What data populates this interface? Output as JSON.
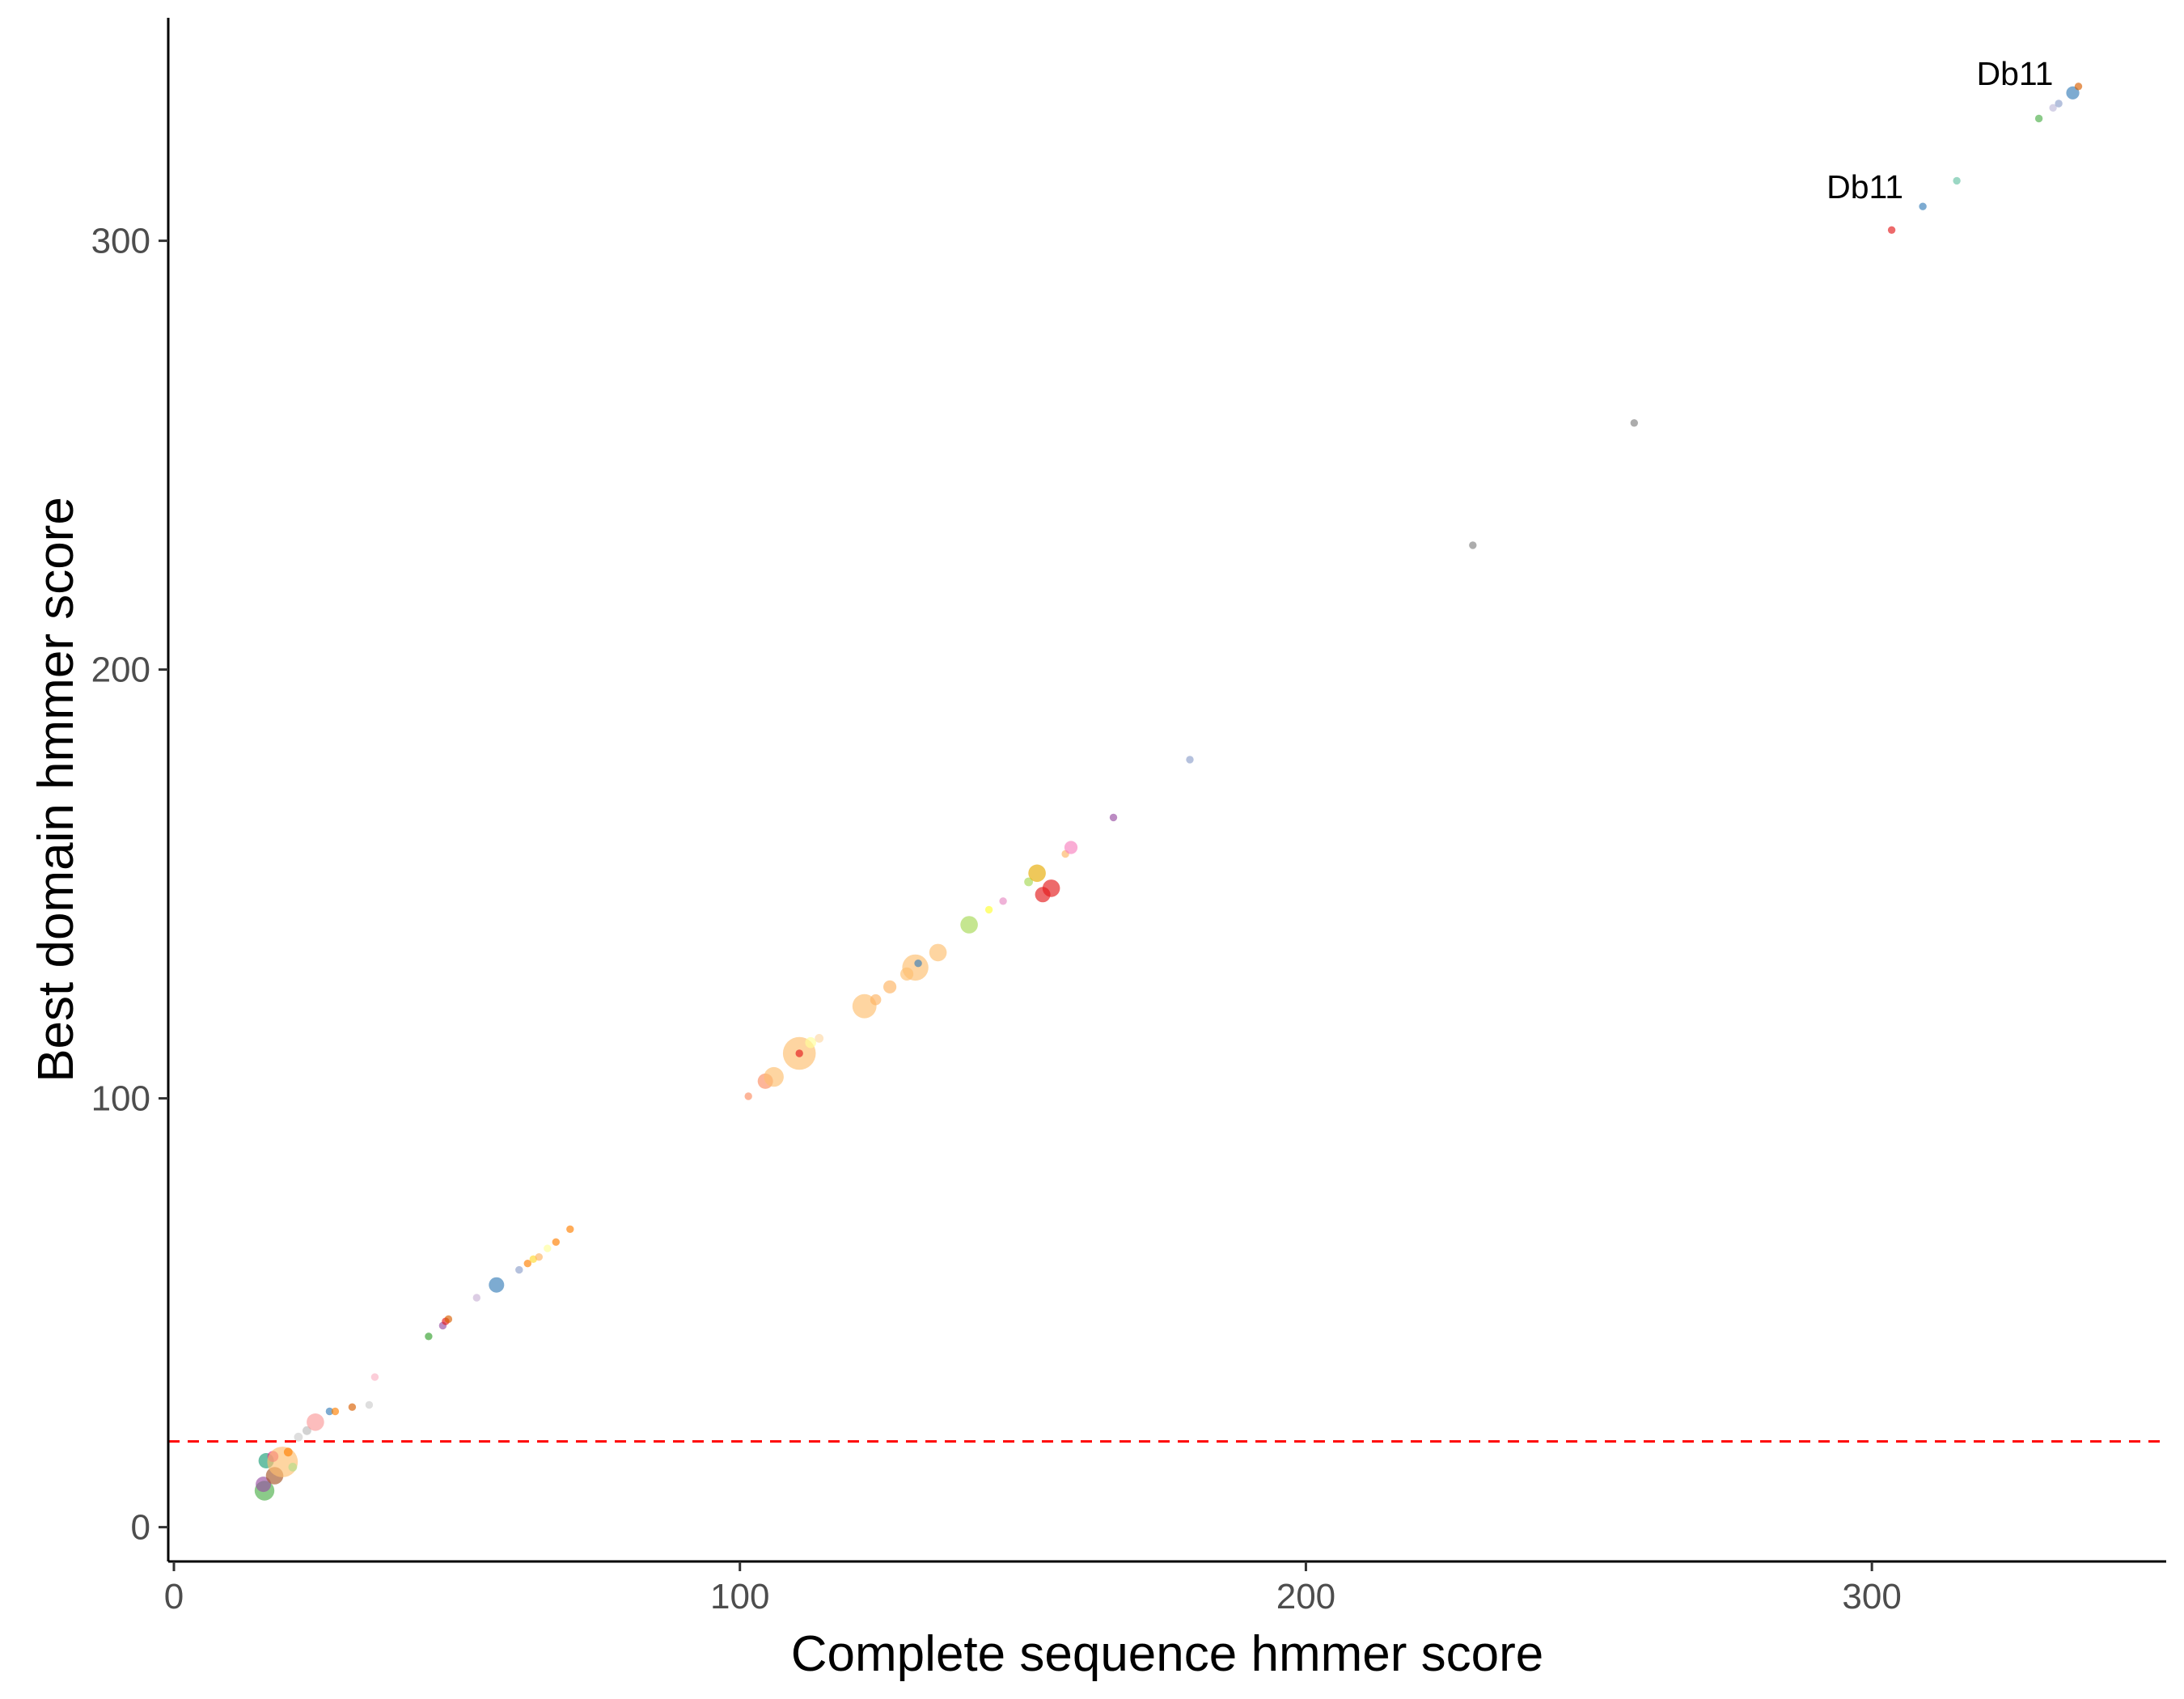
{
  "chart_data": {
    "type": "scatter",
    "title": "",
    "xlabel": "Complete sequence hmmer score",
    "ylabel": "Best domain hmmer score",
    "xlim": [
      -1,
      352
    ],
    "ylim": [
      -8,
      352
    ],
    "x_ticks": [
      0,
      100,
      200,
      300
    ],
    "x_tick_labels": [
      "0",
      "100",
      "200",
      "300"
    ],
    "y_ticks": [
      0,
      100,
      200,
      300
    ],
    "y_tick_labels": [
      "0",
      "100",
      "200",
      "300"
    ],
    "grid": false,
    "legend": "none",
    "threshold_line": {
      "y": 20,
      "color": "#ff0000",
      "style": "dashed"
    },
    "annotations": [
      {
        "text": "Db11",
        "x": 335.5,
        "y": 334.5
      },
      {
        "text": "Db11",
        "x": 309,
        "y": 308
      }
    ],
    "points": [
      {
        "x": 16,
        "y": 8.5,
        "size": 9,
        "color": "#4daf4a"
      },
      {
        "x": 15.8,
        "y": 10,
        "size": 7,
        "color": "#984ea3"
      },
      {
        "x": 16.3,
        "y": 15.5,
        "size": 7,
        "color": "#1b9e77"
      },
      {
        "x": 17.5,
        "y": 16.5,
        "size": 5,
        "color": "#e7298a"
      },
      {
        "x": 17.8,
        "y": 12,
        "size": 8,
        "color": "#a65628"
      },
      {
        "x": 19.2,
        "y": 15.2,
        "size": 14,
        "color": "#fdbf6f"
      },
      {
        "x": 20.2,
        "y": 17.5,
        "size": 4,
        "color": "#ff7f00"
      },
      {
        "x": 21,
        "y": 14,
        "size": 4,
        "color": "#b2df8a"
      },
      {
        "x": 22,
        "y": 21,
        "size": 4,
        "color": "#cccccc"
      },
      {
        "x": 23.5,
        "y": 22.5,
        "size": 4,
        "color": "#bababa"
      },
      {
        "x": 25,
        "y": 24.5,
        "size": 8,
        "color": "#fb9a99"
      },
      {
        "x": 27.5,
        "y": 27,
        "size": 3.5,
        "color": "#377eb8"
      },
      {
        "x": 28.5,
        "y": 27,
        "size": 3.5,
        "color": "#ff7f00"
      },
      {
        "x": 31.5,
        "y": 28,
        "size": 3.5,
        "color": "#d95f02"
      },
      {
        "x": 34.5,
        "y": 28.5,
        "size": 3.5,
        "color": "#cccccc"
      },
      {
        "x": 35.5,
        "y": 35,
        "size": 3.5,
        "color": "#fbb4c4"
      },
      {
        "x": 45,
        "y": 44.5,
        "size": 3.5,
        "color": "#33a02c"
      },
      {
        "x": 47.5,
        "y": 47,
        "size": 3.5,
        "color": "#984ea3"
      },
      {
        "x": 48,
        "y": 48,
        "size": 3.5,
        "color": "#e41a1c"
      },
      {
        "x": 48.5,
        "y": 48.5,
        "size": 3.5,
        "color": "#d95f02"
      },
      {
        "x": 53.5,
        "y": 53.5,
        "size": 3.5,
        "color": "#cab2d6"
      },
      {
        "x": 57,
        "y": 56.5,
        "size": 7,
        "color": "#377eb8"
      },
      {
        "x": 61,
        "y": 60,
        "size": 3.5,
        "color": "#8da0cb"
      },
      {
        "x": 62.5,
        "y": 61.5,
        "size": 3.5,
        "color": "#ff7f00"
      },
      {
        "x": 63.5,
        "y": 62.5,
        "size": 3.5,
        "color": "#ffd92f"
      },
      {
        "x": 64.5,
        "y": 63,
        "size": 3.5,
        "color": "#fdb462"
      },
      {
        "x": 66,
        "y": 65,
        "size": 3.5,
        "color": "#ffff99"
      },
      {
        "x": 67.5,
        "y": 66.5,
        "size": 3.5,
        "color": "#ff7f00"
      },
      {
        "x": 70,
        "y": 69.5,
        "size": 3.5,
        "color": "#ff7f00"
      },
      {
        "x": 101.5,
        "y": 100.5,
        "size": 3.5,
        "color": "#fc8d62"
      },
      {
        "x": 104.5,
        "y": 104,
        "size": 7,
        "color": "#fc8d62"
      },
      {
        "x": 106,
        "y": 105,
        "size": 9,
        "color": "#fdbf6f"
      },
      {
        "x": 110.5,
        "y": 110.5,
        "size": 15,
        "color": "#fdbf6f"
      },
      {
        "x": 110.5,
        "y": 110.5,
        "size": 3.5,
        "color": "#e41a1c"
      },
      {
        "x": 112.5,
        "y": 113,
        "size": 5,
        "color": "#ffff99"
      },
      {
        "x": 114,
        "y": 114,
        "size": 4,
        "color": "#fed9a6"
      },
      {
        "x": 122,
        "y": 121.5,
        "size": 11,
        "color": "#fdbf6f"
      },
      {
        "x": 124,
        "y": 123,
        "size": 5,
        "color": "#fdb462"
      },
      {
        "x": 126.5,
        "y": 126,
        "size": 6,
        "color": "#fdb462"
      },
      {
        "x": 129.5,
        "y": 129,
        "size": 6,
        "color": "#fdbf6f"
      },
      {
        "x": 131,
        "y": 130.5,
        "size": 12,
        "color": "#fdbf6f"
      },
      {
        "x": 131.5,
        "y": 131.5,
        "size": 3.5,
        "color": "#377eb8"
      },
      {
        "x": 135,
        "y": 134,
        "size": 8,
        "color": "#fdbf6f"
      },
      {
        "x": 140.5,
        "y": 140.5,
        "size": 8,
        "color": "#a6d854"
      },
      {
        "x": 144,
        "y": 144,
        "size": 3.5,
        "color": "#ffff33"
      },
      {
        "x": 146.5,
        "y": 146,
        "size": 3.5,
        "color": "#e78ac3"
      },
      {
        "x": 151,
        "y": 150.5,
        "size": 4,
        "color": "#a6d854"
      },
      {
        "x": 152.5,
        "y": 152.5,
        "size": 8,
        "color": "#e6ab02"
      },
      {
        "x": 153.5,
        "y": 147.5,
        "size": 7,
        "color": "#e41a1c"
      },
      {
        "x": 155,
        "y": 149,
        "size": 8,
        "color": "#e41a1c"
      },
      {
        "x": 157.5,
        "y": 157,
        "size": 3.5,
        "color": "#fdb462"
      },
      {
        "x": 158.5,
        "y": 158.5,
        "size": 6,
        "color": "#f781bf"
      },
      {
        "x": 166,
        "y": 165.5,
        "size": 3.5,
        "color": "#984ea3"
      },
      {
        "x": 179.5,
        "y": 179,
        "size": 3.5,
        "color": "#8da0cb"
      },
      {
        "x": 229.5,
        "y": 229,
        "size": 3.5,
        "color": "#808080"
      },
      {
        "x": 258,
        "y": 257.5,
        "size": 3.5,
        "color": "#808080"
      },
      {
        "x": 303.5,
        "y": 302.5,
        "size": 3.5,
        "color": "#e41a1c"
      },
      {
        "x": 309,
        "y": 308,
        "size": 3.5,
        "color": "#377eb8"
      },
      {
        "x": 315,
        "y": 314,
        "size": 3.5,
        "color": "#66c2a5"
      },
      {
        "x": 329.5,
        "y": 328.5,
        "size": 3.5,
        "color": "#4daf4a"
      },
      {
        "x": 332,
        "y": 331,
        "size": 3.5,
        "color": "#bebada"
      },
      {
        "x": 333,
        "y": 332,
        "size": 3.5,
        "color": "#8da0cb"
      },
      {
        "x": 335.5,
        "y": 334.5,
        "size": 6,
        "color": "#377eb8"
      },
      {
        "x": 336.5,
        "y": 336,
        "size": 3.5,
        "color": "#d95f02"
      }
    ]
  }
}
